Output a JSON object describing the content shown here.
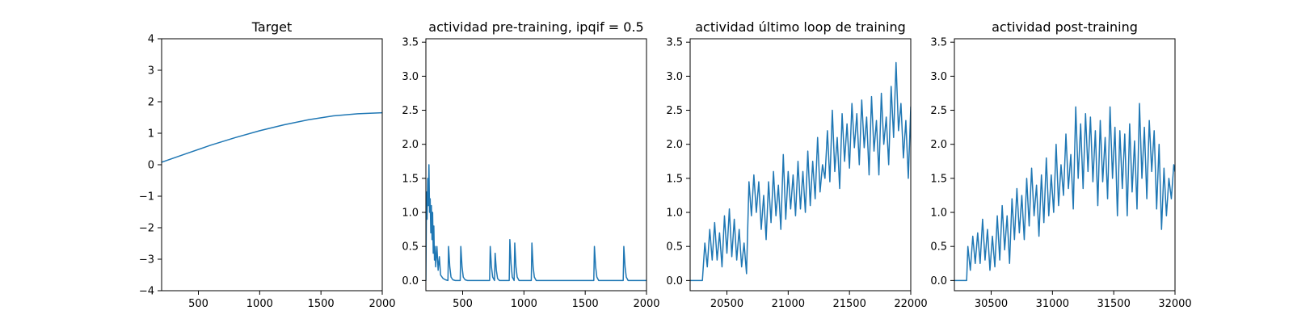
{
  "colors": {
    "series": "#1f77b4",
    "axis": "#000000",
    "background": "#ffffff"
  },
  "chart_data": [
    {
      "type": "line",
      "title": "Target",
      "xlabel": "",
      "ylabel": "",
      "xlim": [
        200,
        2000
      ],
      "ylim": [
        -4,
        4
      ],
      "xticks": [
        500,
        1000,
        1500,
        2000
      ],
      "yticks": [
        -4,
        -3,
        -2,
        -1,
        0,
        1,
        2,
        3,
        4
      ],
      "grid": false,
      "series": [
        {
          "x": [
            200,
            400,
            600,
            800,
            1000,
            1200,
            1400,
            1600,
            1800,
            2000
          ],
          "y": [
            0.08,
            0.35,
            0.62,
            0.86,
            1.08,
            1.27,
            1.43,
            1.55,
            1.62,
            1.65
          ]
        }
      ]
    },
    {
      "type": "line",
      "title": "actividad pre-training, ipqif = 0.5",
      "xlabel": "",
      "ylabel": "",
      "xlim": [
        200,
        2000
      ],
      "ylim": [
        -0.15,
        3.55
      ],
      "xticks": [
        500,
        1000,
        1500,
        2000
      ],
      "yticks": [
        0.0,
        0.5,
        1.0,
        1.5,
        2.0,
        2.5,
        3.0,
        3.5
      ],
      "grid": false,
      "series": [
        {
          "x": [
            200,
            205,
            210,
            215,
            220,
            225,
            230,
            235,
            240,
            245,
            250,
            255,
            260,
            265,
            270,
            275,
            280,
            290,
            300,
            310,
            320,
            340,
            360,
            380,
            385,
            395,
            405,
            420,
            440,
            460,
            480,
            485,
            495,
            505,
            520,
            540,
            560,
            580,
            600,
            620,
            640,
            660,
            680,
            700,
            720,
            725,
            735,
            745,
            760,
            765,
            775,
            785,
            800,
            820,
            840,
            860,
            880,
            885,
            895,
            905,
            920,
            925,
            935,
            945,
            960,
            980,
            1000,
            1020,
            1040,
            1060,
            1065,
            1075,
            1085,
            1100,
            1120,
            1150,
            1200,
            1250,
            1300,
            1350,
            1400,
            1450,
            1500,
            1550,
            1570,
            1575,
            1585,
            1595,
            1610,
            1640,
            1680,
            1720,
            1760,
            1800,
            1810,
            1815,
            1825,
            1835,
            1850,
            1880,
            1920,
            1960,
            2000
          ],
          "y": [
            0,
            1.3,
            0.9,
            1.5,
            1.1,
            1.7,
            1.0,
            1.2,
            0.7,
            1.1,
            0.6,
            1.0,
            0.4,
            0.8,
            0.3,
            0.5,
            0.2,
            0.5,
            0.15,
            0.35,
            0.08,
            0.03,
            0.01,
            0.0,
            0.5,
            0.2,
            0.05,
            0.01,
            0.0,
            0.0,
            0.0,
            0.5,
            0.2,
            0.05,
            0.01,
            0.0,
            0.0,
            0.0,
            0.0,
            0.0,
            0.0,
            0.0,
            0.0,
            0.0,
            0.0,
            0.5,
            0.2,
            0.05,
            0.0,
            0.4,
            0.15,
            0.03,
            0.0,
            0.0,
            0.0,
            0.0,
            0.0,
            0.6,
            0.25,
            0.05,
            0.0,
            0.55,
            0.2,
            0.05,
            0.0,
            0.0,
            0.0,
            0.0,
            0.0,
            0.0,
            0.55,
            0.2,
            0.05,
            0.0,
            0.0,
            0.0,
            0.0,
            0.0,
            0.0,
            0.0,
            0.0,
            0.0,
            0.0,
            0.0,
            0.0,
            0.5,
            0.2,
            0.05,
            0.0,
            0.0,
            0.0,
            0.0,
            0.0,
            0.0,
            0.0,
            0.5,
            0.2,
            0.05,
            0.0,
            0.0,
            0.0,
            0.0,
            0.0
          ]
        }
      ]
    },
    {
      "type": "line",
      "title": "actividad último loop de training",
      "xlabel": "",
      "ylabel": "",
      "xlim": [
        20200,
        22000
      ],
      "ylim": [
        -0.15,
        3.55
      ],
      "xticks": [
        20500,
        21000,
        21500,
        22000
      ],
      "yticks": [
        0.0,
        0.5,
        1.0,
        1.5,
        2.0,
        2.5,
        3.0,
        3.5
      ],
      "grid": false,
      "series": [
        {
          "x": [
            20200,
            20300,
            20320,
            20340,
            20360,
            20380,
            20400,
            20420,
            20440,
            20460,
            20480,
            20500,
            20520,
            20540,
            20560,
            20580,
            20600,
            20620,
            20640,
            20660,
            20680,
            20700,
            20720,
            20740,
            20760,
            20780,
            20800,
            20820,
            20840,
            20860,
            20880,
            20900,
            20920,
            20940,
            20960,
            20980,
            21000,
            21020,
            21040,
            21060,
            21080,
            21100,
            21120,
            21140,
            21160,
            21180,
            21200,
            21220,
            21240,
            21260,
            21280,
            21300,
            21320,
            21340,
            21360,
            21380,
            21400,
            21420,
            21440,
            21460,
            21480,
            21500,
            21520,
            21540,
            21560,
            21580,
            21600,
            21620,
            21640,
            21660,
            21680,
            21700,
            21720,
            21740,
            21760,
            21780,
            21800,
            21820,
            21840,
            21860,
            21880,
            21900,
            21920,
            21940,
            21960,
            21980,
            22000
          ],
          "y": [
            0,
            0,
            0.55,
            0.2,
            0.75,
            0.3,
            0.85,
            0.3,
            0.7,
            0.2,
            0.95,
            0.4,
            1.05,
            0.35,
            0.9,
            0.3,
            0.75,
            0.2,
            0.55,
            0.1,
            1.45,
            0.95,
            1.55,
            1.0,
            1.45,
            0.75,
            1.25,
            0.6,
            1.45,
            0.85,
            1.6,
            0.95,
            1.4,
            0.75,
            1.85,
            0.9,
            1.6,
            1.05,
            1.55,
            0.95,
            1.75,
            1.05,
            1.6,
            1.0,
            1.9,
            1.1,
            1.75,
            1.2,
            2.1,
            1.3,
            1.7,
            1.5,
            2.2,
            1.45,
            2.5,
            1.6,
            2.1,
            1.35,
            2.45,
            1.75,
            2.3,
            1.65,
            2.6,
            1.95,
            2.45,
            1.7,
            2.65,
            1.95,
            2.4,
            1.55,
            2.7,
            1.9,
            2.35,
            1.55,
            2.75,
            2.0,
            2.4,
            1.7,
            2.85,
            2.1,
            3.2,
            2.2,
            2.6,
            1.8,
            2.35,
            1.5,
            2.55
          ]
        }
      ]
    },
    {
      "type": "line",
      "title": "actividad post-training",
      "xlabel": "",
      "ylabel": "",
      "xlim": [
        30200,
        32000
      ],
      "ylim": [
        -0.15,
        3.55
      ],
      "xticks": [
        30500,
        31000,
        31500,
        32000
      ],
      "yticks": [
        0.0,
        0.5,
        1.0,
        1.5,
        2.0,
        2.5,
        3.0,
        3.5
      ],
      "grid": false,
      "series": [
        {
          "x": [
            30200,
            30300,
            30310,
            30330,
            30350,
            30370,
            30390,
            30410,
            30430,
            30450,
            30470,
            30490,
            30510,
            30530,
            30550,
            30570,
            30590,
            30610,
            30630,
            30650,
            30670,
            30690,
            30710,
            30730,
            30750,
            30770,
            30790,
            30810,
            30830,
            30850,
            30870,
            30890,
            30910,
            30930,
            30950,
            30970,
            30990,
            31010,
            31030,
            31050,
            31070,
            31090,
            31110,
            31130,
            31150,
            31170,
            31190,
            31210,
            31230,
            31250,
            31270,
            31290,
            31310,
            31330,
            31350,
            31370,
            31390,
            31410,
            31430,
            31450,
            31470,
            31490,
            31510,
            31530,
            31550,
            31570,
            31590,
            31610,
            31630,
            31650,
            31670,
            31690,
            31710,
            31730,
            31750,
            31770,
            31790,
            31810,
            31830,
            31850,
            31870,
            31890,
            31910,
            31930,
            31950,
            31970,
            31990,
            32000
          ],
          "y": [
            0,
            0,
            0.5,
            0.15,
            0.65,
            0.25,
            0.7,
            0.25,
            0.9,
            0.3,
            0.75,
            0.15,
            0.65,
            0.2,
            0.95,
            0.3,
            1.1,
            0.45,
            0.95,
            0.25,
            1.2,
            0.6,
            1.35,
            0.7,
            1.25,
            0.6,
            1.5,
            0.8,
            1.65,
            0.95,
            1.4,
            0.65,
            1.55,
            0.85,
            1.8,
            0.95,
            1.55,
            1.0,
            2.0,
            1.1,
            1.7,
            1.25,
            2.15,
            1.35,
            1.85,
            1.05,
            2.55,
            1.5,
            2.3,
            1.35,
            2.45,
            1.6,
            2.4,
            1.45,
            2.2,
            1.1,
            2.35,
            1.45,
            2.1,
            1.2,
            2.55,
            1.5,
            2.25,
            0.95,
            2.2,
            1.35,
            2.15,
            0.95,
            2.3,
            1.3,
            2.05,
            1.05,
            2.6,
            1.5,
            2.25,
            1.2,
            2.35,
            1.6,
            2.2,
            1.05,
            2.0,
            0.75,
            1.65,
            0.95,
            1.5,
            1.2,
            1.7,
            1.6
          ]
        }
      ]
    }
  ]
}
